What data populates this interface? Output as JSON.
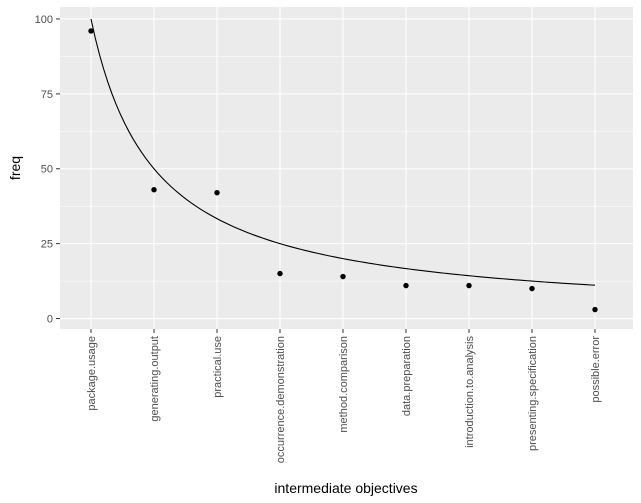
{
  "chart_data": {
    "type": "scatter",
    "xlabel": "intermediate objectives",
    "ylabel": "freq",
    "categories": [
      "package.usage",
      "generating.output",
      "practical.use",
      "occurrence.demonstration",
      "method.comparison",
      "data.preparation",
      "introduction.to.analysis",
      "presenting.specification",
      "possible.error"
    ],
    "values": [
      96,
      43,
      42,
      15,
      14,
      11,
      11,
      10,
      3
    ],
    "fit_line": {
      "description": "smooth fitted curve approx 100/x over category index",
      "values": [
        100,
        50,
        33.3,
        25,
        20,
        16.7,
        14.3,
        12.5,
        11.1
      ]
    },
    "yticks": [
      "0",
      "25",
      "50",
      "75",
      "100"
    ],
    "ylim": [
      -3.5,
      104
    ],
    "grid": true,
    "colors": {
      "panel": "#ebebeb",
      "grid": "#ffffff",
      "point": "#000000",
      "line": "#000000"
    }
  }
}
